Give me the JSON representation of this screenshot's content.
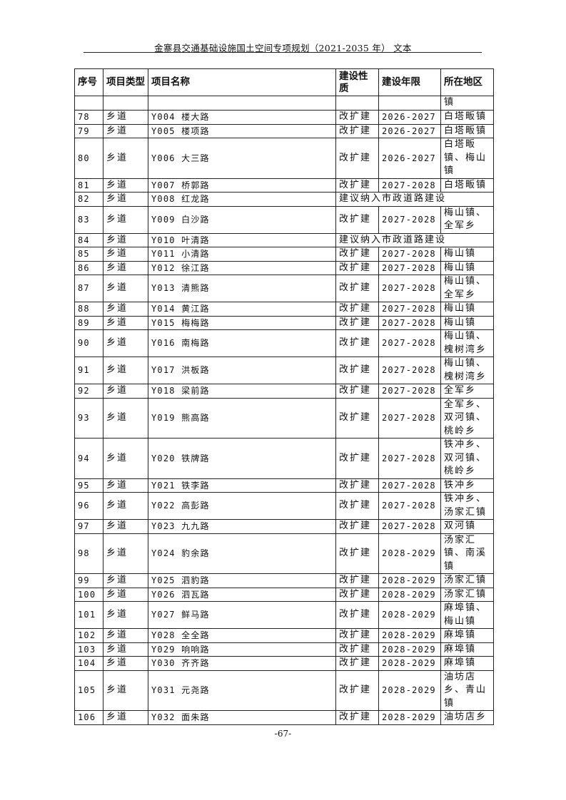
{
  "header": {
    "title": "金寨县交通基础设施国土空间专项规划（2021-2035 年） 文本"
  },
  "table": {
    "columns": [
      "序号",
      "项目类型",
      "项目名称",
      "建设性质",
      "建设年限",
      "所在地区"
    ],
    "continuation": {
      "location": "镇"
    },
    "rows": [
      {
        "no": "78",
        "type": "乡道",
        "name": "Y004 楼大路",
        "nature": "改扩建",
        "years": "2026-2027",
        "location": "白塔畈镇"
      },
      {
        "no": "79",
        "type": "乡道",
        "name": "Y005 楼项路",
        "nature": "改扩建",
        "years": "2026-2027",
        "location": "白塔畈镇"
      },
      {
        "no": "80",
        "type": "乡道",
        "name": "Y006 大三路",
        "nature": "改扩建",
        "years": "2026-2027",
        "location": "白塔畈镇、梅山镇"
      },
      {
        "no": "81",
        "type": "乡道",
        "name": "Y007 桥郭路",
        "nature": "改扩建",
        "years": "2027-2028",
        "location": "白塔畈镇"
      },
      {
        "no": "82",
        "type": "乡道",
        "name": "Y008 红龙路",
        "note": "建议纳入市政道路建设"
      },
      {
        "no": "83",
        "type": "乡道",
        "name": "Y009 白沙路",
        "nature": "改扩建",
        "years": "2027-2028",
        "location": "梅山镇、全军乡"
      },
      {
        "no": "84",
        "type": "乡道",
        "name": "Y010 叶清路",
        "note": "建议纳入市政道路建设"
      },
      {
        "no": "85",
        "type": "乡道",
        "name": "Y011 小清路",
        "nature": "改扩建",
        "years": "2027-2028",
        "location": "梅山镇"
      },
      {
        "no": "86",
        "type": "乡道",
        "name": "Y012 徐江路",
        "nature": "改扩建",
        "years": "2027-2028",
        "location": "梅山镇"
      },
      {
        "no": "87",
        "type": "乡道",
        "name": "Y013 清熊路",
        "nature": "改扩建",
        "years": "2027-2028",
        "location": "梅山镇、全军乡"
      },
      {
        "no": "88",
        "type": "乡道",
        "name": "Y014 黄江路",
        "nature": "改扩建",
        "years": "2027-2028",
        "location": "梅山镇"
      },
      {
        "no": "89",
        "type": "乡道",
        "name": "Y015 梅梅路",
        "nature": "改扩建",
        "years": "2027-2028",
        "location": "梅山镇"
      },
      {
        "no": "90",
        "type": "乡道",
        "name": "Y016 南梅路",
        "nature": "改扩建",
        "years": "2027-2028",
        "location": "梅山镇、槐树湾乡"
      },
      {
        "no": "91",
        "type": "乡道",
        "name": "Y017 洪板路",
        "nature": "改扩建",
        "years": "2027-2028",
        "location": "梅山镇、槐树湾乡"
      },
      {
        "no": "92",
        "type": "乡道",
        "name": "Y018 梁前路",
        "nature": "改扩建",
        "years": "2027-2028",
        "location": "全军乡"
      },
      {
        "no": "93",
        "type": "乡道",
        "name": "Y019 熊高路",
        "nature": "改扩建",
        "years": "2027-2028",
        "location": "全军乡、双河镇、桃岭乡"
      },
      {
        "no": "94",
        "type": "乡道",
        "name": "Y020 铁牌路",
        "nature": "改扩建",
        "years": "2027-2028",
        "location": "铁冲乡、双河镇、桃岭乡"
      },
      {
        "no": "95",
        "type": "乡道",
        "name": "Y021 铁李路",
        "nature": "改扩建",
        "years": "2027-2028",
        "location": "铁冲乡"
      },
      {
        "no": "96",
        "type": "乡道",
        "name": "Y022 高彭路",
        "nature": "改扩建",
        "years": "2027-2028",
        "location": "铁冲乡、汤家汇镇"
      },
      {
        "no": "97",
        "type": "乡道",
        "name": "Y023 九九路",
        "nature": "改扩建",
        "years": "2027-2028",
        "location": "双河镇"
      },
      {
        "no": "98",
        "type": "乡道",
        "name": "Y024 豹余路",
        "nature": "改扩建",
        "years": "2028-2029",
        "location": "汤家汇镇、南溪镇"
      },
      {
        "no": "99",
        "type": "乡道",
        "name": "Y025 泗豹路",
        "nature": "改扩建",
        "years": "2028-2029",
        "location": "汤家汇镇"
      },
      {
        "no": "100",
        "type": "乡道",
        "name": "Y026 泗瓦路",
        "nature": "改扩建",
        "years": "2028-2029",
        "location": "汤家汇镇"
      },
      {
        "no": "101",
        "type": "乡道",
        "name": "Y027 鲜马路",
        "nature": "改扩建",
        "years": "2028-2029",
        "location": "麻埠镇、梅山镇"
      },
      {
        "no": "102",
        "type": "乡道",
        "name": "Y028 全全路",
        "nature": "改扩建",
        "years": "2028-2029",
        "location": "麻埠镇"
      },
      {
        "no": "103",
        "type": "乡道",
        "name": "Y029 响响路",
        "nature": "改扩建",
        "years": "2028-2029",
        "location": "麻埠镇"
      },
      {
        "no": "104",
        "type": "乡道",
        "name": "Y030 齐齐路",
        "nature": "改扩建",
        "years": "2028-2029",
        "location": "麻埠镇"
      },
      {
        "no": "105",
        "type": "乡道",
        "name": "Y031 元尧路",
        "nature": "改扩建",
        "years": "2028-2029",
        "location": "油坊店乡、青山镇"
      },
      {
        "no": "106",
        "type": "乡道",
        "name": "Y032 面朱路",
        "nature": "改扩建",
        "years": "2028-2029",
        "location": "油坊店乡"
      }
    ]
  },
  "footer": {
    "page_number": "-67-"
  }
}
